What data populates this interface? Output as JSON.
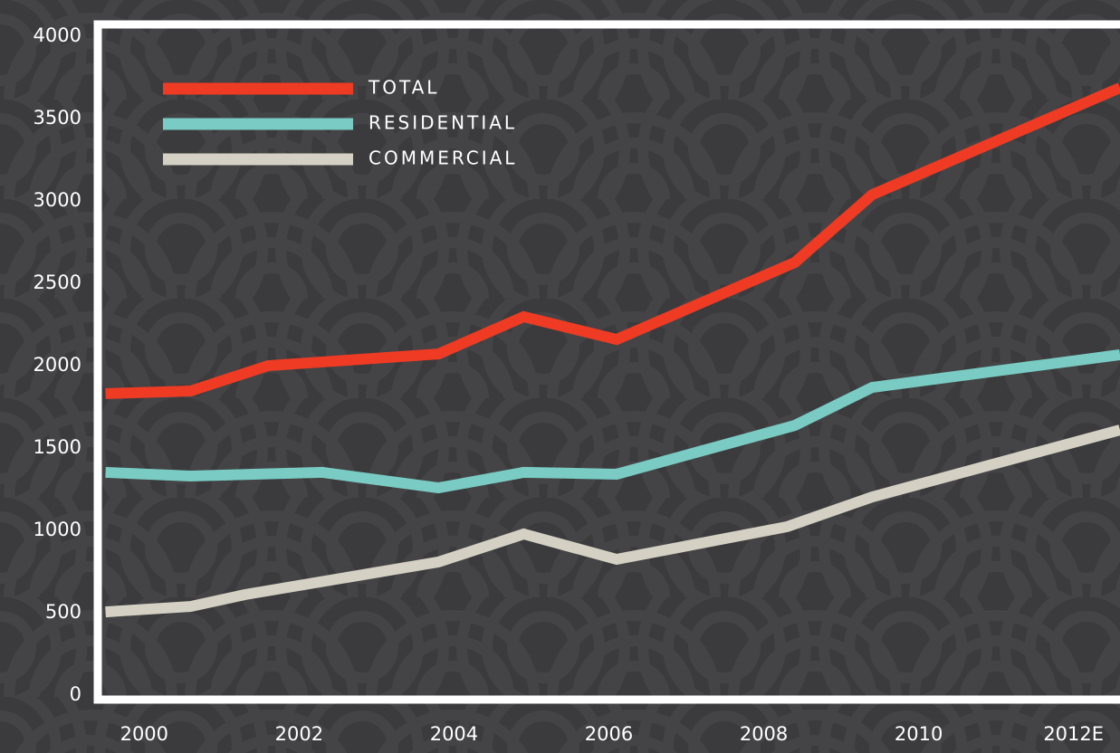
{
  "chart_data": {
    "type": "line",
    "xlim": [
      1999.4,
      2012.6
    ],
    "xticks": [
      2000,
      2002,
      2004,
      2006,
      2008,
      2010,
      {
        "value": 2012,
        "label": "2012E"
      }
    ],
    "ylim": [
      0,
      4000
    ],
    "yticks": [
      0,
      500,
      1000,
      1500,
      2000,
      2500,
      3000,
      3500,
      4000
    ],
    "legend": "upper left",
    "series": [
      {
        "name": "TOTAL",
        "color": "#ef3b24",
        "x": [
          1999.5,
          2000.6,
          2001.6,
          2003.8,
          2004.9,
          2006.1,
          2008.4,
          2009.4,
          2012.6
        ],
        "values": [
          1830,
          1846,
          2000,
          2071,
          2297,
          2159,
          2626,
          3038,
          3687
        ]
      },
      {
        "name": "RESIDENTIAL",
        "color": "#79cbc3",
        "x": [
          1999.5,
          2000.6,
          2002.3,
          2003.8,
          2004.9,
          2006.1,
          2008.4,
          2009.4,
          2012.6
        ],
        "values": [
          1352,
          1330,
          1352,
          1258,
          1352,
          1341,
          1637,
          1868,
          2066
        ]
      },
      {
        "name": "COMMERCIAL",
        "color": "#d4d1c4",
        "x": [
          1999.5,
          2000.6,
          2001.3,
          2003.8,
          2004.9,
          2006.1,
          2008.3,
          2009.4,
          2012.6
        ],
        "values": [
          505,
          538,
          610,
          808,
          978,
          824,
          1022,
          1203,
          1610
        ]
      }
    ]
  }
}
